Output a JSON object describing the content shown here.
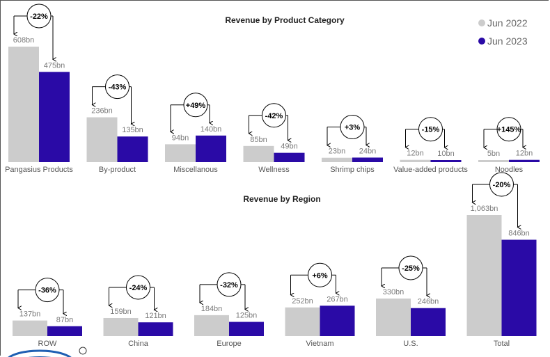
{
  "colors": {
    "y2022": "#cccccc",
    "y2023": "#2a0aa6"
  },
  "legend": [
    {
      "name": "Jun 2022",
      "color": "#cccccc"
    },
    {
      "name": "Jun 2023",
      "color": "#2a0aa6"
    }
  ],
  "chart_data": [
    {
      "type": "bar",
      "title": "Revenue by Product Category",
      "categories": [
        "Pangasius Products",
        "By-product",
        "Miscellanous",
        "Wellness",
        "Shrimp chips",
        "Value-added products",
        "Noodles"
      ],
      "series": [
        {
          "name": "Jun 2022",
          "values": [
            608,
            236,
            94,
            85,
            23,
            12,
            5
          ],
          "labels": [
            "608bn",
            "236bn",
            "94bn",
            "85bn",
            "23bn",
            "12bn",
            "5bn"
          ]
        },
        {
          "name": "Jun 2023",
          "values": [
            475,
            135,
            140,
            49,
            24,
            10,
            12
          ],
          "labels": [
            "475bn",
            "135bn",
            "140bn",
            "49bn",
            "24bn",
            "10bn",
            "12bn"
          ]
        }
      ],
      "changes": [
        "-22%",
        "-43%",
        "+49%",
        "-42%",
        "+3%",
        "-15%",
        "+145%"
      ],
      "legend_position": "top-right"
    },
    {
      "type": "bar",
      "title": "Revenue by Region",
      "categories": [
        "ROW",
        "China",
        "Europe",
        "Vietnam",
        "U.S.",
        "Total"
      ],
      "series": [
        {
          "name": "Jun 2022",
          "values": [
            137,
            159,
            184,
            252,
            330,
            1063
          ],
          "labels": [
            "137bn",
            "159bn",
            "184bn",
            "252bn",
            "330bn",
            "1,063bn"
          ]
        },
        {
          "name": "Jun 2023",
          "values": [
            87,
            121,
            125,
            267,
            246,
            846
          ],
          "labels": [
            "87bn",
            "121bn",
            "125bn",
            "267bn",
            "246bn",
            "846bn"
          ]
        }
      ],
      "changes": [
        "-36%",
        "-24%",
        "-32%",
        "+6%",
        "-25%",
        "-20%"
      ]
    }
  ]
}
